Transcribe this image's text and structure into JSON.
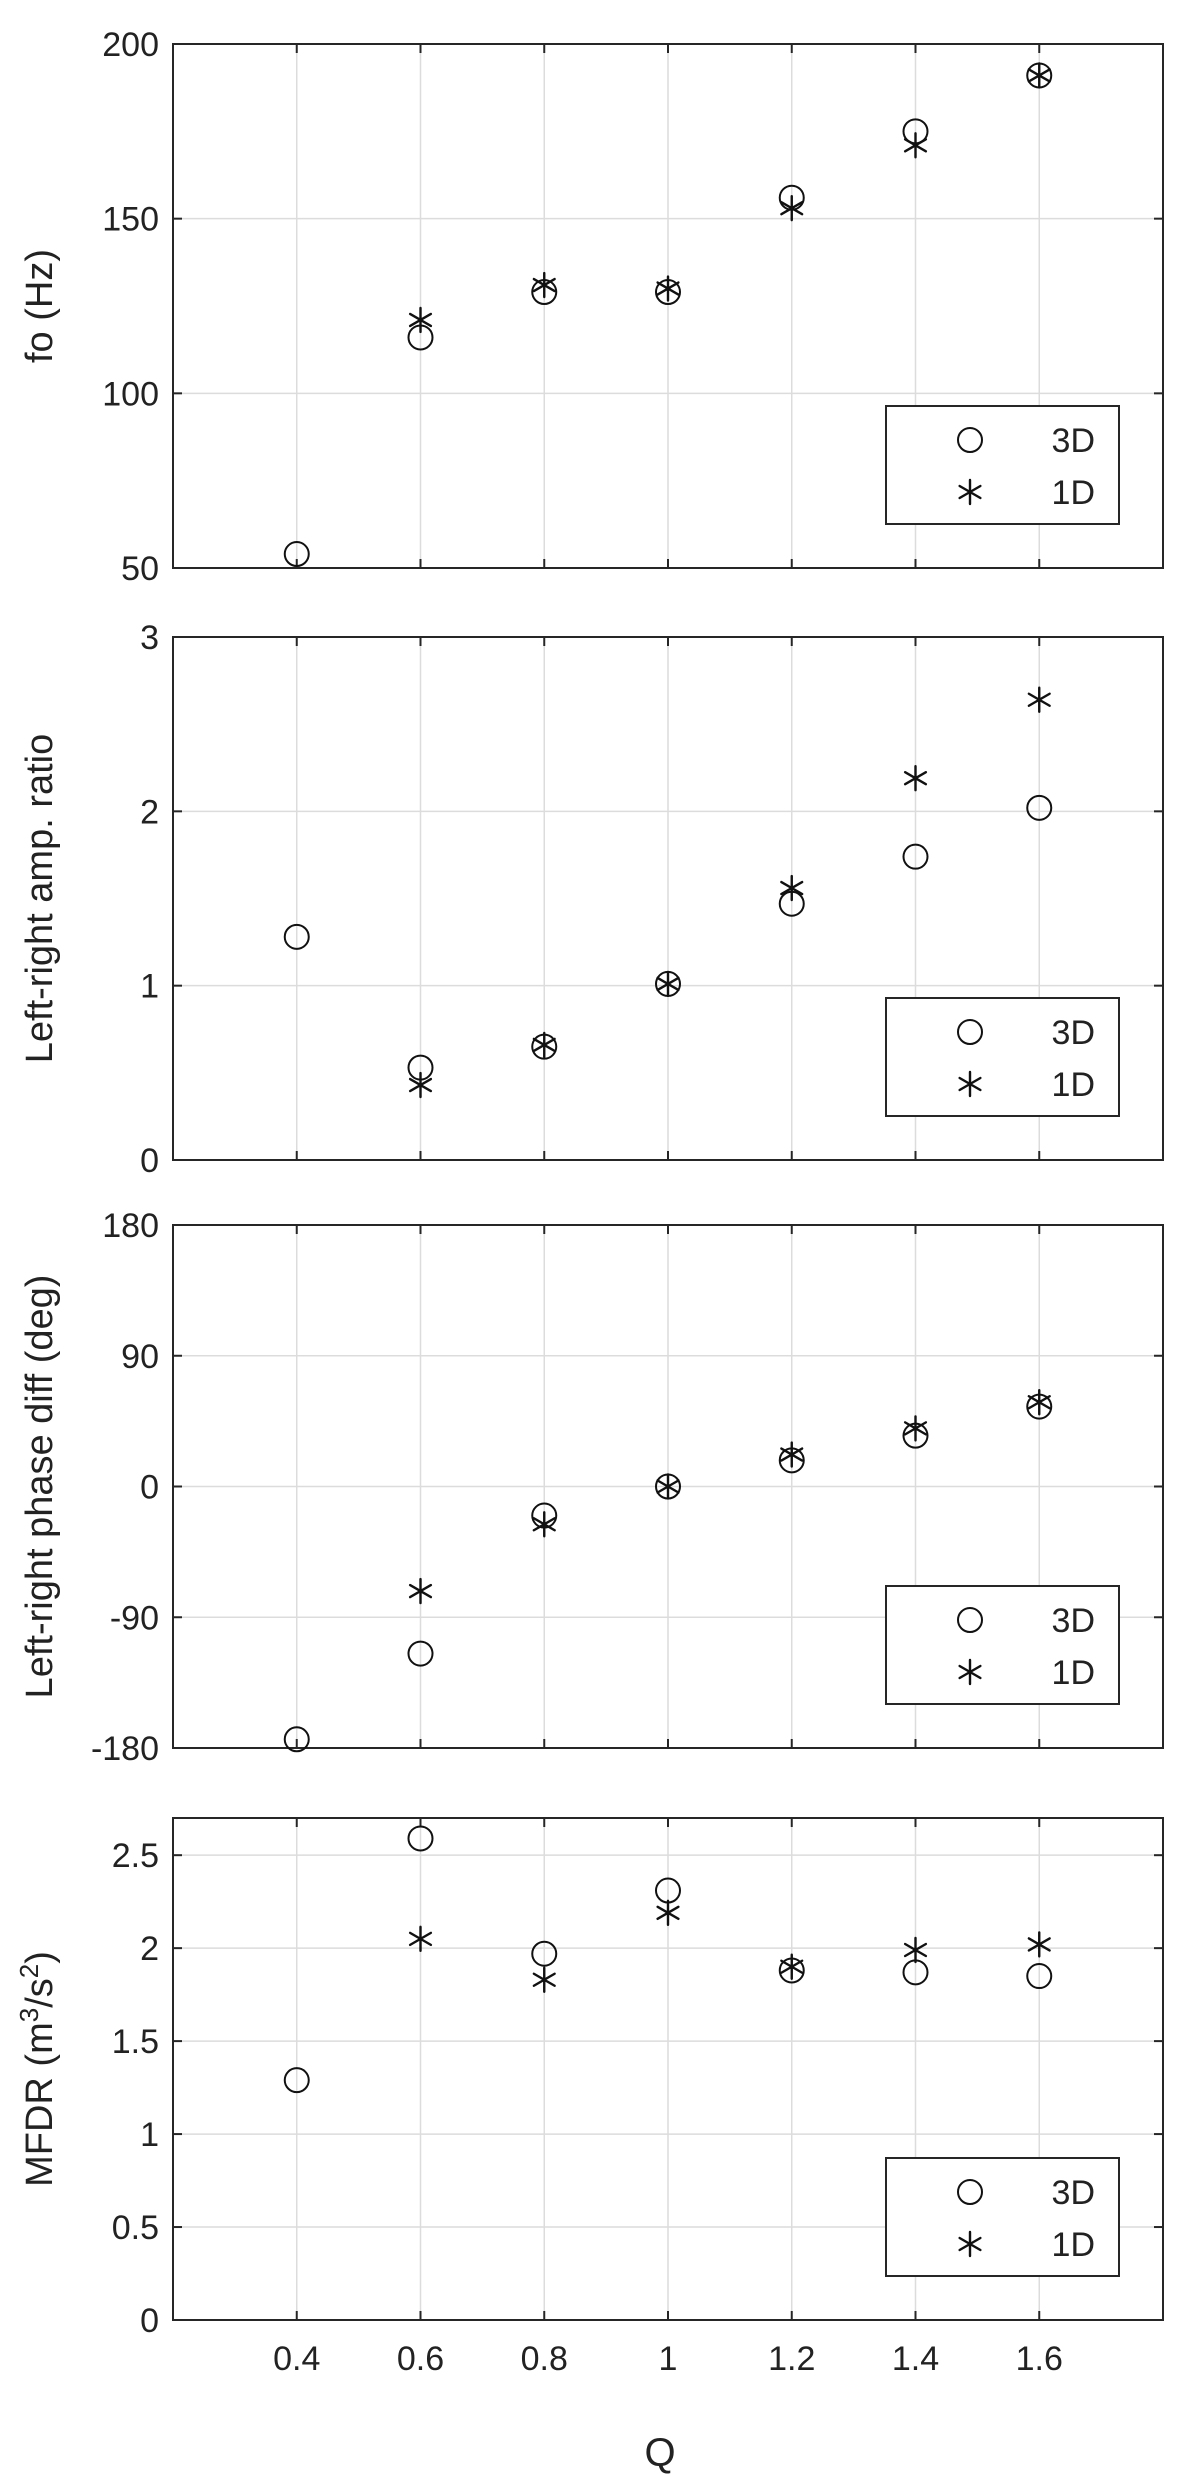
{
  "figure": {
    "xlabel": "Q"
  },
  "chart_data": [
    {
      "type": "scatter",
      "title": "",
      "xlabel": "",
      "ylabel": "fo (Hz)",
      "xlim": [
        0.2,
        1.8
      ],
      "ylim": [
        50,
        200
      ],
      "x_ticks": [
        0.4,
        0.6,
        0.8,
        1,
        1.2,
        1.4,
        1.6
      ],
      "x_tick_labels": [],
      "y_ticks": [
        50,
        100,
        150,
        200
      ],
      "y_tick_labels": [
        "50",
        "100",
        "150",
        "200"
      ],
      "grid": true,
      "legend": "bottom-right",
      "series": [
        {
          "name": "3D",
          "marker": "circle",
          "x": [
            0.4,
            0.6,
            0.8,
            1.0,
            1.2,
            1.4,
            1.6
          ],
          "y": [
            54,
            116,
            129,
            129,
            156,
            175,
            191
          ]
        },
        {
          "name": "1D",
          "marker": "asterisk",
          "x": [
            0.6,
            0.8,
            1.0,
            1.2,
            1.4,
            1.6
          ],
          "y": [
            121,
            131,
            130,
            153,
            171,
            191
          ]
        }
      ]
    },
    {
      "type": "scatter",
      "title": "",
      "xlabel": "",
      "ylabel": "Left-right amp. ratio",
      "xlim": [
        0.2,
        1.8
      ],
      "ylim": [
        0,
        3
      ],
      "x_ticks": [
        0.4,
        0.6,
        0.8,
        1,
        1.2,
        1.4,
        1.6
      ],
      "x_tick_labels": [],
      "y_ticks": [
        0,
        1,
        2,
        3
      ],
      "y_tick_labels": [
        "0",
        "1",
        "2",
        "3"
      ],
      "grid": true,
      "legend": "bottom-right",
      "series": [
        {
          "name": "3D",
          "marker": "circle",
          "x": [
            0.4,
            0.6,
            0.8,
            1.0,
            1.2,
            1.4,
            1.6
          ],
          "y": [
            1.28,
            0.53,
            0.65,
            1.01,
            1.47,
            1.74,
            2.02
          ]
        },
        {
          "name": "1D",
          "marker": "asterisk",
          "x": [
            0.6,
            0.8,
            1.0,
            1.2,
            1.4,
            1.6
          ],
          "y": [
            0.43,
            0.66,
            1.01,
            1.56,
            2.19,
            2.64
          ]
        }
      ]
    },
    {
      "type": "scatter",
      "title": "",
      "xlabel": "",
      "ylabel": "Left-right phase diff (deg)",
      "xlim": [
        0.2,
        1.8
      ],
      "ylim": [
        -180,
        180
      ],
      "x_ticks": [
        0.4,
        0.6,
        0.8,
        1,
        1.2,
        1.4,
        1.6
      ],
      "x_tick_labels": [],
      "y_ticks": [
        -180,
        -90,
        0,
        90,
        180
      ],
      "y_tick_labels": [
        "-180",
        "-90",
        "0",
        "90",
        "180"
      ],
      "grid": true,
      "legend": "bottom-right",
      "series": [
        {
          "name": "3D",
          "marker": "circle",
          "x": [
            0.4,
            0.6,
            0.8,
            1.0,
            1.2,
            1.4,
            1.6
          ],
          "y": [
            -174,
            -115,
            -20,
            0,
            18,
            35,
            55
          ]
        },
        {
          "name": "1D",
          "marker": "asterisk",
          "x": [
            0.6,
            0.8,
            1.0,
            1.2,
            1.4,
            1.6
          ],
          "y": [
            -72,
            -26,
            0,
            22,
            40,
            58
          ]
        }
      ]
    },
    {
      "type": "scatter",
      "title": "",
      "xlabel": "Q",
      "ylabel": "MFDR (m³/s²)",
      "xlim": [
        0.2,
        1.8
      ],
      "ylim": [
        0,
        2.7
      ],
      "x_ticks": [
        0.4,
        0.6,
        0.8,
        1,
        1.2,
        1.4,
        1.6
      ],
      "x_tick_labels": [
        "0.4",
        "0.6",
        "0.8",
        "1",
        "1.2",
        "1.4",
        "1.6"
      ],
      "y_ticks": [
        0,
        0.5,
        1,
        1.5,
        2,
        2.5
      ],
      "y_tick_labels": [
        "0",
        "0.5",
        "1",
        "1.5",
        "2",
        "2.5"
      ],
      "grid": true,
      "legend": "bottom-right",
      "series": [
        {
          "name": "3D",
          "marker": "circle",
          "x": [
            0.4,
            0.6,
            0.8,
            1.0,
            1.2,
            1.4,
            1.6
          ],
          "y": [
            1.29,
            2.59,
            1.97,
            2.31,
            1.88,
            1.87,
            1.85
          ]
        },
        {
          "name": "1D",
          "marker": "asterisk",
          "x": [
            0.6,
            0.8,
            1.0,
            1.2,
            1.4,
            1.6
          ],
          "y": [
            2.05,
            1.83,
            2.19,
            1.9,
            1.99,
            2.02
          ]
        }
      ]
    }
  ]
}
